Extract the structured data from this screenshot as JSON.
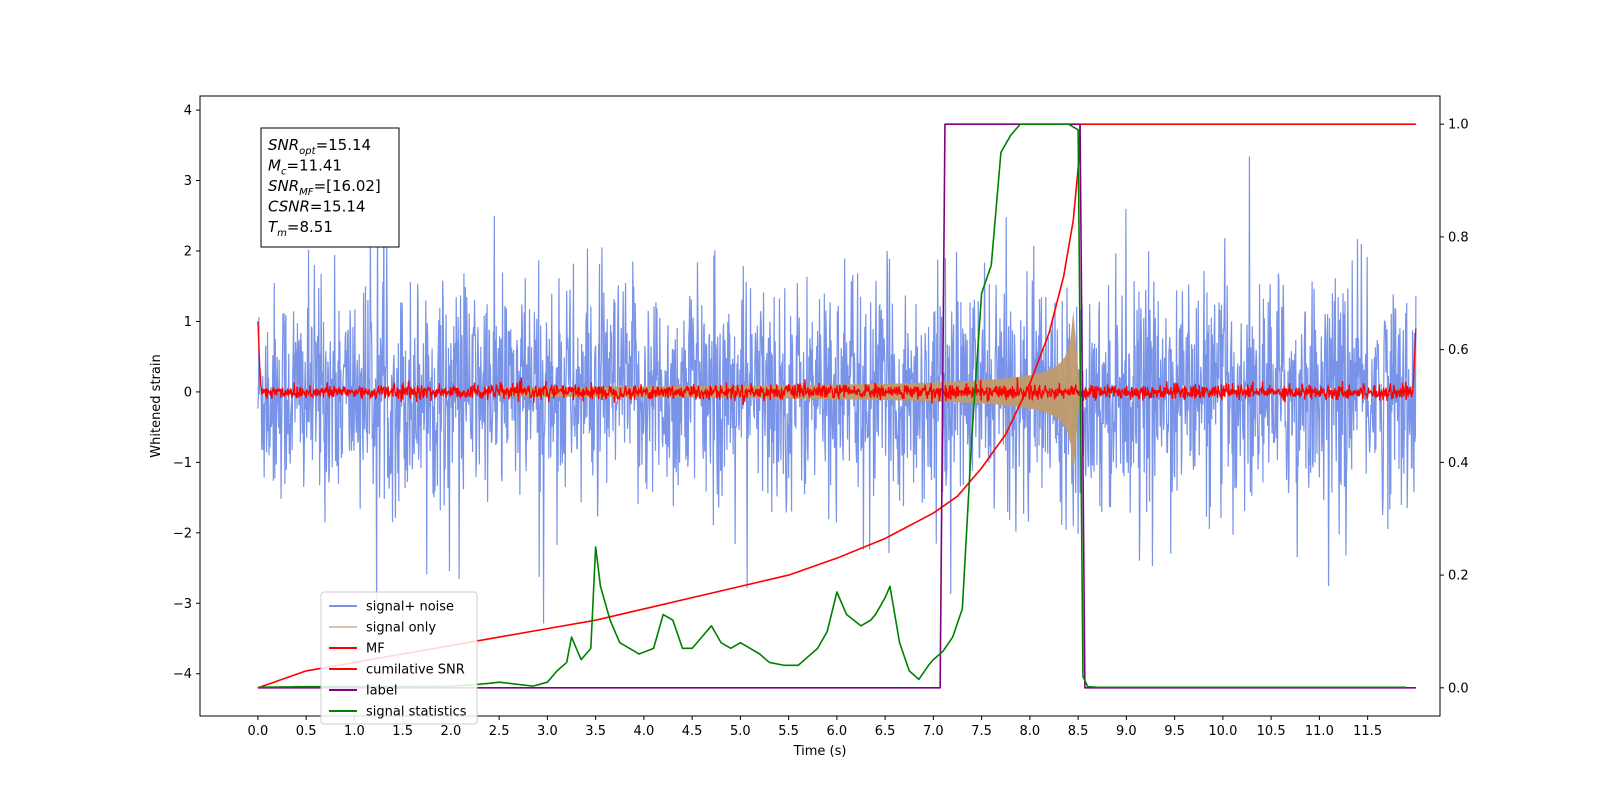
{
  "chart_data": {
    "type": "line",
    "xlabel": "Time (s)",
    "ylabel": "Whitened strain",
    "xlim": [
      -0.6,
      12.25
    ],
    "ylim": [
      -4.6,
      4.2
    ],
    "y2lim": [
      -0.05,
      1.05
    ],
    "x_ticks": [
      0.0,
      0.5,
      1.0,
      1.5,
      2.0,
      2.5,
      3.0,
      3.5,
      4.0,
      4.5,
      5.0,
      5.5,
      6.0,
      6.5,
      7.0,
      7.5,
      8.0,
      8.5,
      9.0,
      9.5,
      10.0,
      10.5,
      11.0,
      11.5
    ],
    "x_tick_labels": [
      "0.0",
      "0.5",
      "1.0",
      "1.5",
      "2.0",
      "2.5",
      "3.0",
      "3.5",
      "4.0",
      "4.5",
      "5.0",
      "5.5",
      "6.0",
      "6.5",
      "7.0",
      "7.5",
      "8.0",
      "8.5",
      "9.0",
      "9.5",
      "10.0",
      "10.5",
      "11.0",
      "11.5"
    ],
    "y_ticks": [
      -4,
      -3,
      -2,
      -1,
      0,
      1,
      2,
      3,
      4
    ],
    "y_tick_labels": [
      "−4",
      "−3",
      "−2",
      "−1",
      "0",
      "1",
      "2",
      "3",
      "4"
    ],
    "y2_ticks": [
      0.0,
      0.2,
      0.4,
      0.6,
      0.8,
      1.0
    ],
    "y2_tick_labels": [
      "0.0",
      "0.2",
      "0.4",
      "0.6",
      "0.8",
      "1.0"
    ],
    "grid": false,
    "legend_position": "lower-left",
    "annotation": {
      "lines": [
        {
          "base": "SNR",
          "sub": "opt",
          "value": "=15.14"
        },
        {
          "base": "M",
          "sub": "c",
          "value": "=11.41"
        },
        {
          "base": "SNR",
          "sub": "MF",
          "value": "=[16.02]"
        },
        {
          "base": "CSNR",
          "sub": "",
          "value": "=15.14"
        },
        {
          "base": "T",
          "sub": "m",
          "value": "=8.51"
        }
      ]
    },
    "series": [
      {
        "name": "signal+ noise",
        "axis": "left",
        "color": "#7893e8",
        "kind": "noise-band",
        "t_range": [
          0.0,
          12.0
        ],
        "typical_amplitude": 1.6,
        "peak_max": 3.85,
        "peak_min": -3.3
      },
      {
        "name": "signal only",
        "axis": "left",
        "color": "#c09a6b",
        "kind": "chirp-envelope",
        "t_start": 2.5,
        "t_peak": 8.45,
        "t_end": 8.52,
        "peak_amplitude": 1.15
      },
      {
        "name": "MF",
        "axis": "left",
        "color": "#ff0000",
        "kind": "noise-band",
        "t_range": [
          0.0,
          12.0
        ],
        "typical_amplitude": 0.12,
        "edge_start_value": 1.0,
        "edge_end_value": 0.9
      },
      {
        "name": "cumilative SNR",
        "axis": "right",
        "color": "#ff0000",
        "kind": "curve",
        "x": [
          0.0,
          0.5,
          1.0,
          1.5,
          2.0,
          2.5,
          3.0,
          3.5,
          4.0,
          4.5,
          5.0,
          5.5,
          6.0,
          6.5,
          7.0,
          7.25,
          7.5,
          7.75,
          8.0,
          8.2,
          8.35,
          8.45,
          8.51,
          8.52,
          12.0
        ],
        "values": [
          0.0,
          0.03,
          0.045,
          0.06,
          0.075,
          0.09,
          0.105,
          0.12,
          0.14,
          0.16,
          0.18,
          0.2,
          0.23,
          0.265,
          0.31,
          0.34,
          0.39,
          0.45,
          0.54,
          0.63,
          0.73,
          0.83,
          0.94,
          1.0,
          1.0
        ]
      },
      {
        "name": "label",
        "axis": "right",
        "color": "#800080",
        "kind": "step",
        "x": [
          0.0,
          7.07,
          7.12,
          8.52,
          8.57,
          12.0
        ],
        "values": [
          0.0,
          0.0,
          1.0,
          1.0,
          0.0,
          0.0
        ]
      },
      {
        "name": "signal statistics",
        "axis": "right",
        "color": "#008000",
        "kind": "curve",
        "x": [
          0.0,
          0.5,
          1.0,
          1.5,
          2.0,
          2.2,
          2.4,
          2.5,
          2.7,
          2.85,
          3.0,
          3.1,
          3.2,
          3.25,
          3.35,
          3.45,
          3.5,
          3.55,
          3.65,
          3.75,
          3.85,
          3.95,
          4.1,
          4.2,
          4.3,
          4.4,
          4.5,
          4.6,
          4.7,
          4.8,
          4.9,
          5.0,
          5.1,
          5.2,
          5.3,
          5.45,
          5.6,
          5.7,
          5.8,
          5.9,
          6.0,
          6.1,
          6.25,
          6.35,
          6.4,
          6.5,
          6.55,
          6.65,
          6.75,
          6.85,
          6.95,
          7.0,
          7.1,
          7.2,
          7.3,
          7.4,
          7.5,
          7.6,
          7.7,
          7.8,
          7.9,
          8.0,
          8.2,
          8.4,
          8.5,
          8.55,
          8.6,
          8.7,
          9.0,
          10.0,
          11.0,
          11.9
        ],
        "values": [
          0.001,
          0.002,
          0.002,
          0.002,
          0.003,
          0.005,
          0.008,
          0.01,
          0.006,
          0.003,
          0.01,
          0.03,
          0.045,
          0.09,
          0.05,
          0.07,
          0.25,
          0.18,
          0.12,
          0.08,
          0.07,
          0.06,
          0.07,
          0.13,
          0.12,
          0.07,
          0.07,
          0.09,
          0.11,
          0.08,
          0.07,
          0.08,
          0.07,
          0.06,
          0.045,
          0.04,
          0.04,
          0.055,
          0.07,
          0.1,
          0.17,
          0.13,
          0.11,
          0.12,
          0.13,
          0.16,
          0.18,
          0.08,
          0.03,
          0.015,
          0.04,
          0.05,
          0.065,
          0.09,
          0.14,
          0.45,
          0.7,
          0.75,
          0.95,
          0.98,
          1.0,
          1.0,
          1.0,
          1.0,
          0.99,
          0.02,
          0.002,
          0.001,
          0.001,
          0.001,
          0.001,
          0.001
        ]
      }
    ]
  }
}
